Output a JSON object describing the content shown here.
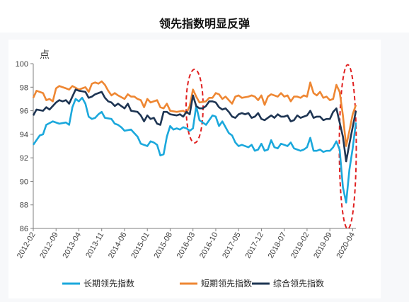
{
  "chart_data": {
    "type": "line",
    "title": "领先指数明显反弹",
    "ylabel": "点",
    "ylim": [
      86,
      100
    ],
    "yticks": [
      86,
      88,
      90,
      92,
      94,
      96,
      98,
      100
    ],
    "xticks": [
      "2012-02",
      "2012-09",
      "2013-04",
      "2013-11",
      "2014-06",
      "2015-01",
      "2015-08",
      "2016-03",
      "2016-10",
      "2017-05",
      "2017-12",
      "2018-07",
      "2019-02",
      "2019-09",
      "2020-04"
    ],
    "grid": false,
    "legend": "bottom",
    "highlights": [
      {
        "start": "2016-01",
        "end": "2016-06"
      },
      {
        "start": "2019-12",
        "end": "2020-05"
      }
    ],
    "series": [
      {
        "name": "长期领先指数",
        "color": "#1ba8dc",
        "points": [
          [
            "2012-02",
            93.1
          ],
          [
            "2012-04",
            93.9
          ],
          [
            "2012-05",
            94.0
          ],
          [
            "2012-06",
            94.8
          ],
          [
            "2012-08",
            95.1
          ],
          [
            "2012-10",
            94.9
          ],
          [
            "2012-12",
            95.0
          ],
          [
            "2013-01",
            94.8
          ],
          [
            "2013-02",
            96.3
          ],
          [
            "2013-03",
            97.0
          ],
          [
            "2013-04",
            96.8
          ],
          [
            "2013-05",
            97.1
          ],
          [
            "2013-06",
            96.6
          ],
          [
            "2013-07",
            95.5
          ],
          [
            "2013-08",
            95.3
          ],
          [
            "2013-09",
            95.4
          ],
          [
            "2013-10",
            95.7
          ],
          [
            "2013-11",
            95.9
          ],
          [
            "2013-12",
            95.4
          ],
          [
            "2014-02",
            95.3
          ],
          [
            "2014-03",
            94.9
          ],
          [
            "2014-04",
            94.8
          ],
          [
            "2014-05",
            94.6
          ],
          [
            "2014-06",
            94.3
          ],
          [
            "2014-08",
            94.4
          ],
          [
            "2014-09",
            94.1
          ],
          [
            "2014-10",
            93.8
          ],
          [
            "2014-11",
            93.2
          ],
          [
            "2015-01",
            93.0
          ],
          [
            "2015-02",
            93.4
          ],
          [
            "2015-03",
            93.3
          ],
          [
            "2015-04",
            93.1
          ],
          [
            "2015-05",
            92.2
          ],
          [
            "2015-06",
            92.3
          ],
          [
            "2015-07",
            93.8
          ],
          [
            "2015-08",
            94.7
          ],
          [
            "2015-09",
            94.4
          ],
          [
            "2015-10",
            94.5
          ],
          [
            "2015-11",
            94.4
          ],
          [
            "2015-12",
            94.6
          ],
          [
            "2016-01",
            94.5
          ],
          [
            "2016-02",
            94.3
          ],
          [
            "2016-03",
            94.5
          ],
          [
            "2016-04",
            96.4
          ],
          [
            "2016-05",
            95.2
          ],
          [
            "2016-06",
            95.0
          ],
          [
            "2016-07",
            94.8
          ],
          [
            "2016-08",
            95.2
          ],
          [
            "2016-09",
            95.6
          ],
          [
            "2016-10",
            95.5
          ],
          [
            "2016-11",
            94.7
          ],
          [
            "2016-12",
            95.1
          ],
          [
            "2017-02",
            94.1
          ],
          [
            "2017-03",
            93.9
          ],
          [
            "2017-04",
            93.3
          ],
          [
            "2017-05",
            93.0
          ],
          [
            "2017-06",
            93.1
          ],
          [
            "2017-08",
            92.9
          ],
          [
            "2017-09",
            93.1
          ],
          [
            "2017-10",
            92.6
          ],
          [
            "2017-11",
            92.7
          ],
          [
            "2017-12",
            93.2
          ],
          [
            "2018-01",
            92.6
          ],
          [
            "2018-02",
            92.7
          ],
          [
            "2018-03",
            93.5
          ],
          [
            "2018-04",
            92.9
          ],
          [
            "2018-05",
            92.8
          ],
          [
            "2018-06",
            93.2
          ],
          [
            "2018-07",
            93.1
          ],
          [
            "2018-08",
            93.0
          ],
          [
            "2018-09",
            93.3
          ],
          [
            "2018-10",
            92.8
          ],
          [
            "2018-11",
            92.7
          ],
          [
            "2018-12",
            92.6
          ],
          [
            "2019-01",
            92.7
          ],
          [
            "2019-02",
            92.9
          ],
          [
            "2019-03",
            93.7
          ],
          [
            "2019-04",
            92.6
          ],
          [
            "2019-05",
            92.6
          ],
          [
            "2019-06",
            92.7
          ],
          [
            "2019-07",
            92.5
          ],
          [
            "2019-08",
            92.6
          ],
          [
            "2019-09",
            92.6
          ],
          [
            "2019-10",
            92.9
          ],
          [
            "2019-11",
            93.4
          ],
          [
            "2019-12",
            92.7
          ],
          [
            "2020-01",
            89.5
          ],
          [
            "2020-02",
            88.2
          ],
          [
            "2020-03",
            91.0
          ],
          [
            "2020-04",
            92.8
          ],
          [
            "2020-05",
            95.0
          ]
        ]
      },
      {
        "name": "短期领先指数",
        "color": "#ee8733",
        "points": [
          [
            "2012-02",
            97.1
          ],
          [
            "2012-03",
            97.7
          ],
          [
            "2012-05",
            97.5
          ],
          [
            "2012-06",
            96.9
          ],
          [
            "2012-07",
            97.0
          ],
          [
            "2012-08",
            96.8
          ],
          [
            "2012-09",
            97.9
          ],
          [
            "2012-10",
            98.1
          ],
          [
            "2012-12",
            97.9
          ],
          [
            "2013-01",
            97.8
          ],
          [
            "2013-02",
            98.1
          ],
          [
            "2013-04",
            97.8
          ],
          [
            "2013-06",
            98.0
          ],
          [
            "2013-07",
            97.6
          ],
          [
            "2013-08",
            98.3
          ],
          [
            "2013-09",
            98.4
          ],
          [
            "2013-10",
            98.3
          ],
          [
            "2013-11",
            98.5
          ],
          [
            "2013-12",
            98.2
          ],
          [
            "2014-01",
            97.7
          ],
          [
            "2014-02",
            97.3
          ],
          [
            "2014-03",
            97.5
          ],
          [
            "2014-04",
            97.3
          ],
          [
            "2014-06",
            97.0
          ],
          [
            "2014-07",
            97.4
          ],
          [
            "2014-08",
            97.2
          ],
          [
            "2014-09",
            97.2
          ],
          [
            "2014-10",
            97.0
          ],
          [
            "2014-11",
            96.9
          ],
          [
            "2014-12",
            96.3
          ],
          [
            "2015-01",
            97.0
          ],
          [
            "2015-02",
            96.7
          ],
          [
            "2015-04",
            96.9
          ],
          [
            "2015-05",
            96.3
          ],
          [
            "2015-06",
            96.2
          ],
          [
            "2015-07",
            96.6
          ],
          [
            "2015-08",
            96.0
          ],
          [
            "2015-10",
            95.9
          ],
          [
            "2015-12",
            96.0
          ],
          [
            "2016-01",
            95.8
          ],
          [
            "2016-02",
            96.4
          ],
          [
            "2016-03",
            97.8
          ],
          [
            "2016-04",
            97.2
          ],
          [
            "2016-05",
            96.7
          ],
          [
            "2016-07",
            96.8
          ],
          [
            "2016-08",
            97.1
          ],
          [
            "2016-09",
            97.1
          ],
          [
            "2016-10",
            97.5
          ],
          [
            "2016-11",
            97.4
          ],
          [
            "2016-12",
            97.0
          ],
          [
            "2017-01",
            97.2
          ],
          [
            "2017-02",
            96.9
          ],
          [
            "2017-03",
            96.6
          ],
          [
            "2017-04",
            97.2
          ],
          [
            "2017-05",
            97.3
          ],
          [
            "2017-06",
            97.1
          ],
          [
            "2017-08",
            97.2
          ],
          [
            "2017-09",
            97.3
          ],
          [
            "2017-10",
            97.2
          ],
          [
            "2017-11",
            96.9
          ],
          [
            "2017-12",
            97.3
          ],
          [
            "2018-01",
            96.5
          ],
          [
            "2018-02",
            97.2
          ],
          [
            "2018-03",
            97.4
          ],
          [
            "2018-05",
            97.2
          ],
          [
            "2018-06",
            97.5
          ],
          [
            "2018-07",
            97.2
          ],
          [
            "2018-08",
            97.3
          ],
          [
            "2018-09",
            96.8
          ],
          [
            "2018-10",
            97.2
          ],
          [
            "2018-11",
            97.2
          ],
          [
            "2018-12",
            97.1
          ],
          [
            "2019-01",
            97.3
          ],
          [
            "2019-02",
            97.2
          ],
          [
            "2019-03",
            98.4
          ],
          [
            "2019-04",
            97.5
          ],
          [
            "2019-05",
            97.3
          ],
          [
            "2019-06",
            97.6
          ],
          [
            "2019-07",
            97.1
          ],
          [
            "2019-08",
            97.2
          ],
          [
            "2019-09",
            96.9
          ],
          [
            "2019-10",
            97.0
          ],
          [
            "2019-11",
            98.2
          ],
          [
            "2019-12",
            97.6
          ],
          [
            "2020-01",
            95.6
          ],
          [
            "2020-02",
            93.0
          ],
          [
            "2020-03",
            94.3
          ],
          [
            "2020-04",
            95.7
          ],
          [
            "2020-05",
            96.5
          ]
        ]
      },
      {
        "name": "综合领先指数",
        "color": "#1e3553",
        "points": [
          [
            "2012-02",
            95.6
          ],
          [
            "2012-03",
            96.1
          ],
          [
            "2012-05",
            96.0
          ],
          [
            "2012-06",
            96.3
          ],
          [
            "2012-07",
            96.1
          ],
          [
            "2012-08",
            96.4
          ],
          [
            "2012-09",
            96.7
          ],
          [
            "2012-10",
            96.9
          ],
          [
            "2012-11",
            96.8
          ],
          [
            "2012-12",
            96.9
          ],
          [
            "2013-01",
            96.6
          ],
          [
            "2013-02",
            97.2
          ],
          [
            "2013-03",
            97.8
          ],
          [
            "2013-04",
            97.7
          ],
          [
            "2013-06",
            97.6
          ],
          [
            "2013-07",
            97.1
          ],
          [
            "2013-08",
            97.2
          ],
          [
            "2013-09",
            97.4
          ],
          [
            "2013-10",
            97.5
          ],
          [
            "2013-11",
            97.6
          ],
          [
            "2013-12",
            97.1
          ],
          [
            "2014-01",
            96.8
          ],
          [
            "2014-02",
            96.7
          ],
          [
            "2014-03",
            96.4
          ],
          [
            "2014-04",
            96.6
          ],
          [
            "2014-05",
            96.4
          ],
          [
            "2014-06",
            96.2
          ],
          [
            "2014-07",
            96.6
          ],
          [
            "2014-08",
            96.0
          ],
          [
            "2014-10",
            95.9
          ],
          [
            "2014-11",
            95.6
          ],
          [
            "2014-12",
            95.1
          ],
          [
            "2015-01",
            95.6
          ],
          [
            "2015-02",
            95.3
          ],
          [
            "2015-03",
            95.4
          ],
          [
            "2015-04",
            94.9
          ],
          [
            "2015-05",
            94.8
          ],
          [
            "2015-06",
            95.9
          ],
          [
            "2015-07",
            95.9
          ],
          [
            "2015-08",
            95.7
          ],
          [
            "2015-10",
            95.6
          ],
          [
            "2015-11",
            95.7
          ],
          [
            "2015-12",
            95.5
          ],
          [
            "2016-01",
            95.9
          ],
          [
            "2016-02",
            95.7
          ],
          [
            "2016-03",
            97.3
          ],
          [
            "2016-04",
            96.4
          ],
          [
            "2016-05",
            96.2
          ],
          [
            "2016-06",
            96.2
          ],
          [
            "2016-07",
            96.4
          ],
          [
            "2016-08",
            96.8
          ],
          [
            "2016-09",
            96.8
          ],
          [
            "2016-10",
            96.7
          ],
          [
            "2016-11",
            96.3
          ],
          [
            "2016-12",
            96.1
          ],
          [
            "2017-01",
            96.2
          ],
          [
            "2017-02",
            95.9
          ],
          [
            "2017-03",
            95.5
          ],
          [
            "2017-04",
            95.4
          ],
          [
            "2017-05",
            95.7
          ],
          [
            "2017-06",
            95.8
          ],
          [
            "2017-07",
            95.7
          ],
          [
            "2017-08",
            95.8
          ],
          [
            "2017-09",
            95.4
          ],
          [
            "2017-10",
            95.5
          ],
          [
            "2017-11",
            95.8
          ],
          [
            "2017-12",
            95.3
          ],
          [
            "2018-01",
            95.2
          ],
          [
            "2018-02",
            95.4
          ],
          [
            "2018-03",
            95.6
          ],
          [
            "2018-04",
            95.4
          ],
          [
            "2018-05",
            95.7
          ],
          [
            "2018-06",
            95.5
          ],
          [
            "2018-07",
            95.5
          ],
          [
            "2018-08",
            95.6
          ],
          [
            "2018-09",
            95.1
          ],
          [
            "2018-10",
            95.2
          ],
          [
            "2018-11",
            95.6
          ],
          [
            "2018-12",
            95.4
          ],
          [
            "2019-01",
            95.5
          ],
          [
            "2019-02",
            95.6
          ],
          [
            "2019-03",
            96.0
          ],
          [
            "2019-04",
            95.4
          ],
          [
            "2019-05",
            95.5
          ],
          [
            "2019-06",
            95.5
          ],
          [
            "2019-07",
            95.2
          ],
          [
            "2019-08",
            95.3
          ],
          [
            "2019-09",
            95.3
          ],
          [
            "2019-10",
            95.9
          ],
          [
            "2019-11",
            96.2
          ],
          [
            "2019-12",
            95.0
          ],
          [
            "2020-01",
            93.8
          ],
          [
            "2020-02",
            91.7
          ],
          [
            "2020-03",
            93.2
          ],
          [
            "2020-04",
            94.6
          ],
          [
            "2020-05",
            96.0
          ]
        ]
      }
    ]
  }
}
